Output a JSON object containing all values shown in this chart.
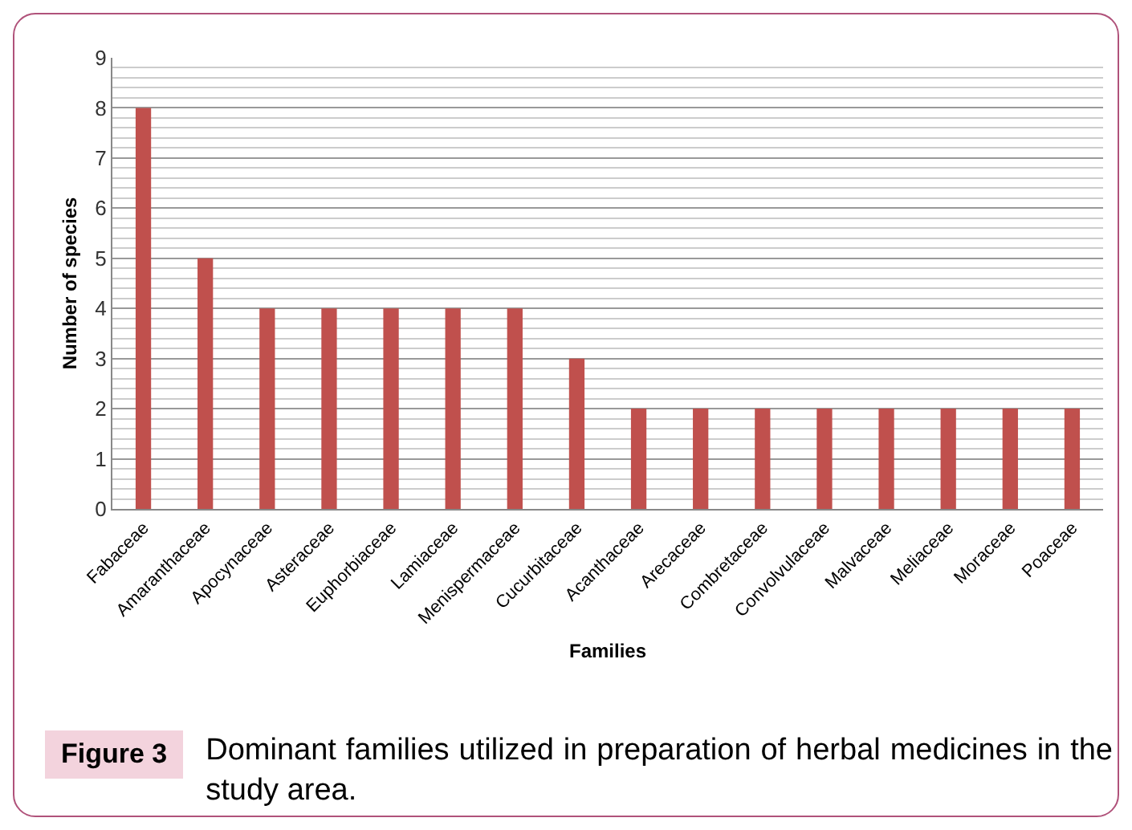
{
  "chart_data": {
    "type": "bar",
    "xlabel": "Families",
    "ylabel": "Number of species",
    "categories": [
      "Fabaceae",
      "Amaranthaceae",
      "Apocynaceae",
      "Asteraceae",
      "Euphorbiaceae",
      "Lamiaceae",
      "Menispermaceae",
      "Cucurbitaceae",
      "Acanthaceae",
      "Arecaceae",
      "Combretaceae",
      "Convolvulaceae",
      "Malvaceae",
      "Meliaceae",
      "Moraceae",
      "Poaceae"
    ],
    "values": [
      8,
      5,
      4,
      4,
      4,
      4,
      4,
      3,
      2,
      2,
      2,
      2,
      2,
      2,
      2,
      2
    ],
    "color": "#c0504d",
    "ylim": [
      0,
      9
    ],
    "yticks": [
      0,
      1,
      2,
      3,
      4,
      5,
      6,
      7,
      8,
      9
    ],
    "grid": "y",
    "annotations": [
      "Figure 3",
      "Dominant families utilized in preparation of herbal medicines in the study area."
    ]
  }
}
